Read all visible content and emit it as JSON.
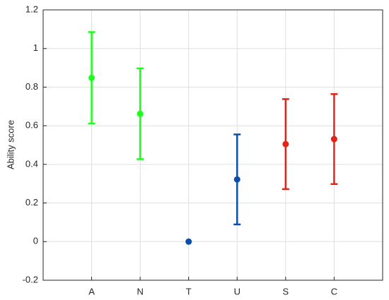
{
  "chart_data": {
    "type": "errorbar",
    "y_label": "Ability score",
    "categories": [
      "A",
      "N",
      "T",
      "U",
      "S",
      "C"
    ],
    "values": [
      0.848,
      0.662,
      0,
      0.322,
      0.505,
      0.531
    ],
    "errors": [
      0.237,
      0.235,
      null,
      0.233,
      0.233,
      0.233
    ],
    "colors": [
      "#1aff1a",
      "#1aff1a",
      "#0d4fa8",
      "#0d4fa8",
      "#e0261a",
      "#e0261a"
    ],
    "ylim": [
      -0.2,
      1.2
    ],
    "yticks": [
      -0.2,
      0,
      0.2,
      0.4,
      0.6,
      0.8,
      1,
      1.2
    ],
    "grid": true
  }
}
